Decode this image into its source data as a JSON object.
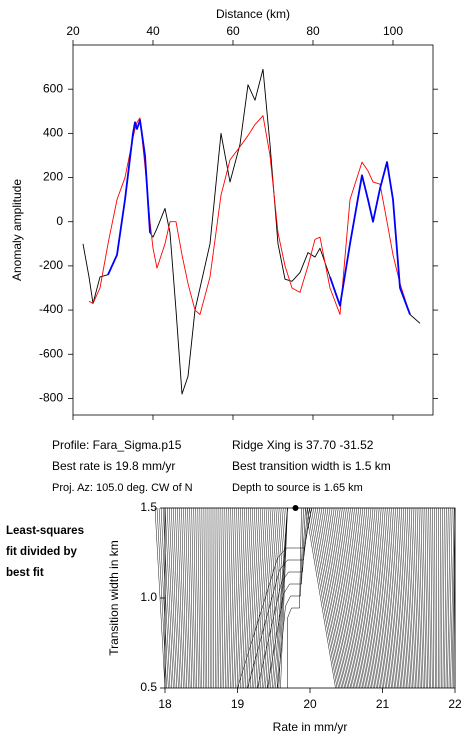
{
  "chart_data": [
    {
      "type": "line",
      "x_label": "Distance (km)",
      "y_label": "Anomaly amplitude",
      "xlim": [
        20,
        110
      ],
      "xticks": [
        20,
        40,
        60,
        80,
        100
      ],
      "ylim": [
        -875,
        800
      ],
      "yticks": [
        -800,
        -600,
        -400,
        -200,
        0,
        200,
        400,
        600
      ],
      "x": [
        22.5,
        24,
        25,
        26.75,
        28.75,
        31,
        33,
        35,
        35.5,
        36,
        36.75,
        38,
        39.25,
        40,
        41,
        43,
        44.25,
        45.75,
        47.25,
        48.75,
        50.5,
        51.75,
        54.25,
        57,
        59.25,
        61.75,
        63.75,
        65.5,
        67.5,
        69.25,
        71.25,
        73,
        74.75,
        76.75,
        78.75,
        80.5,
        81.75,
        84.25,
        86.75,
        89.25,
        92.25,
        93.75,
        95,
        96.75,
        98.5,
        100,
        101.75,
        104.25,
        106.75
      ],
      "series": [
        {
          "color": "#000000",
          "width": 0.9,
          "values": [
            -100,
            -250,
            -370,
            -250,
            -240,
            -150,
            100,
            400,
            450,
            420,
            460,
            300,
            -50,
            -70,
            -30,
            60,
            -50,
            -400,
            -780,
            -700,
            -400,
            -300,
            -100,
            400,
            180,
            350,
            620,
            550,
            690,
            350,
            -100,
            -260,
            -270,
            -230,
            -140,
            -160,
            -120,
            -250,
            -380,
            -100,
            210,
            100,
            0,
            150,
            270,
            100,
            -300,
            -420,
            -460
          ]
        },
        {
          "color": "#ff0000",
          "width": 0.9,
          "values": [
            null,
            -360,
            -370,
            -300,
            -100,
            100,
            200,
            380,
            420,
            450,
            470,
            250,
            0,
            -120,
            -210,
            -100,
            0,
            0,
            -150,
            -280,
            -400,
            -420,
            -250,
            120,
            280,
            340,
            390,
            440,
            480,
            300,
            -50,
            -200,
            -300,
            -320,
            -200,
            -80,
            -70,
            -300,
            -420,
            100,
            270,
            230,
            180,
            170,
            0,
            -150,
            -280,
            -420,
            null
          ]
        },
        {
          "color": "#0000ff",
          "width": 1.8,
          "values": [
            null,
            null,
            null,
            null,
            -240,
            -150,
            100,
            400,
            450,
            420,
            460,
            300,
            -50,
            null,
            null,
            null,
            null,
            null,
            null,
            null,
            null,
            null,
            null,
            null,
            null,
            null,
            null,
            null,
            null,
            null,
            null,
            null,
            null,
            null,
            null,
            null,
            null,
            -250,
            -380,
            -100,
            210,
            100,
            0,
            150,
            270,
            100,
            -300,
            -420,
            null
          ]
        }
      ]
    },
    {
      "type": "contour",
      "x_label": "Rate in mm/yr",
      "y_label": "Transition width in km",
      "xlim": [
        18,
        22
      ],
      "xticks": [
        18,
        19,
        20,
        21,
        22
      ],
      "ylim": [
        0.5,
        1.5
      ],
      "yticks": [
        0.5,
        {
          "value": 1,
          "label": "1.0"
        },
        1.5
      ],
      "best_fit": {
        "x": 19.8,
        "y": 1.5
      }
    }
  ],
  "profile_info": [
    [
      "Profile: Fara_Sigma.p15",
      "Ridge Xing is 37.70 -31.52"
    ],
    [
      "Best rate is 19.8 mm/yr",
      "Best transition width is 1.5 km"
    ],
    [
      "Proj. Az: 105.0 deg. CW of N",
      "Depth to source is    1.65 km"
    ]
  ],
  "side_note": [
    "Least-squares",
    "fit divided by",
    "best fit"
  ]
}
